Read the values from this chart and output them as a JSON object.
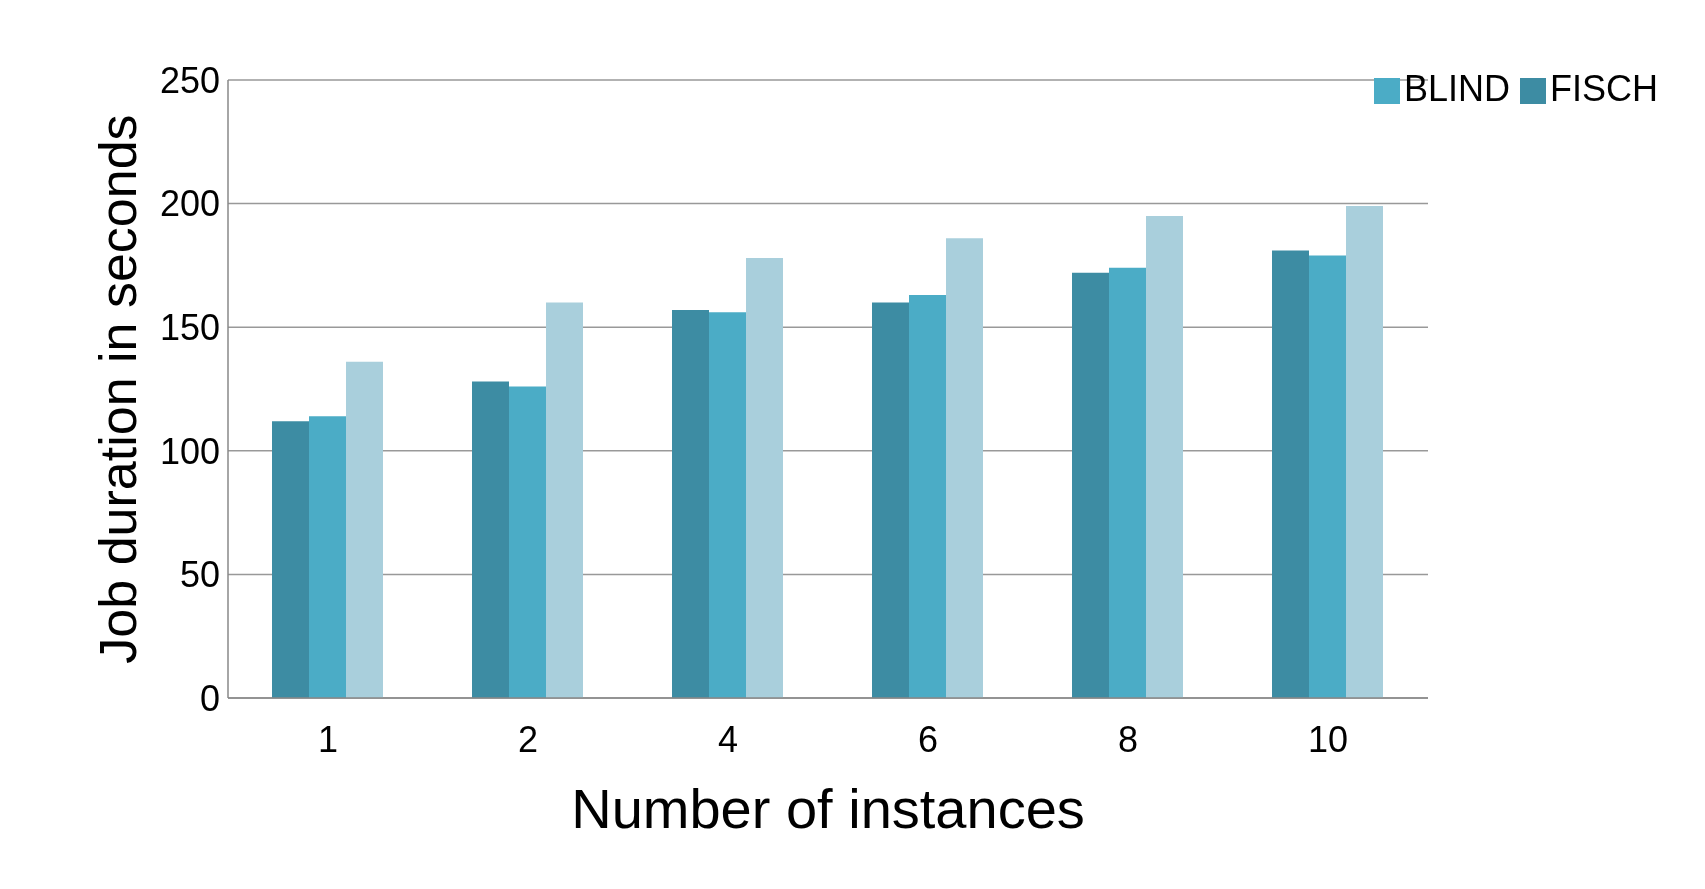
{
  "chart_data": {
    "type": "bar",
    "xlabel": "Number of instances",
    "ylabel": "Job duration in seconds",
    "categories": [
      "1",
      "2",
      "4",
      "6",
      "8",
      "10"
    ],
    "series": [
      {
        "name": "FISCH",
        "color": "#3d8ca3",
        "values": [
          112,
          128,
          157,
          160,
          172,
          181
        ]
      },
      {
        "name": "BLIND",
        "color": "#4bacc6",
        "values": [
          114,
          126,
          156,
          163,
          174,
          179
        ]
      },
      {
        "color": "#a9cfdc",
        "values": [
          136,
          160,
          178,
          186,
          195,
          199
        ]
      }
    ],
    "ylim": [
      0,
      250
    ],
    "yticks": [
      0,
      50,
      100,
      150,
      200,
      250
    ],
    "grid": "y",
    "legend": "top right"
  }
}
